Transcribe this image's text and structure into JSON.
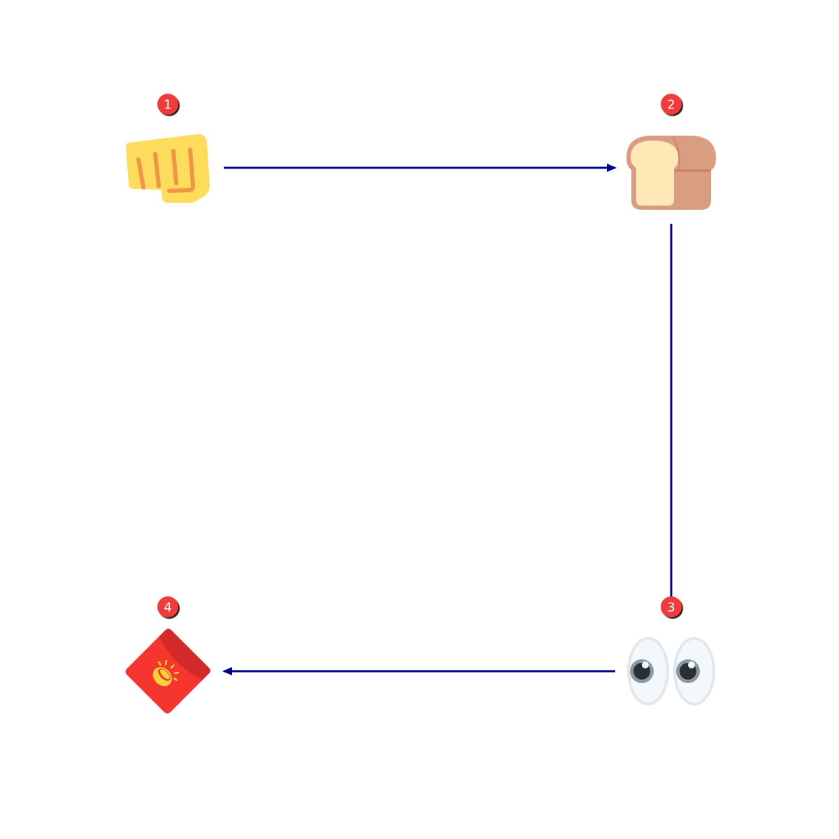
{
  "diagram": {
    "nodes": [
      {
        "id": "n1",
        "step": "1",
        "icon": "oncoming-fist-icon",
        "badge_color": "#ef3b3b"
      },
      {
        "id": "n2",
        "step": "2",
        "icon": "bread-icon",
        "badge_color": "#ef3b3b"
      },
      {
        "id": "n3",
        "step": "3",
        "icon": "eyes-icon",
        "badge_color": "#ef3b3b"
      },
      {
        "id": "n4",
        "step": "4",
        "icon": "red-envelope-icon",
        "badge_color": "#ef3b3b"
      }
    ],
    "edges": [
      {
        "from": "n1",
        "to": "n2"
      },
      {
        "from": "n2",
        "to": "n3"
      },
      {
        "from": "n3",
        "to": "n4"
      }
    ],
    "colors": {
      "arrow": "#00008b",
      "badge": "#ef3b3b",
      "badge_text": "#ffffff"
    }
  }
}
